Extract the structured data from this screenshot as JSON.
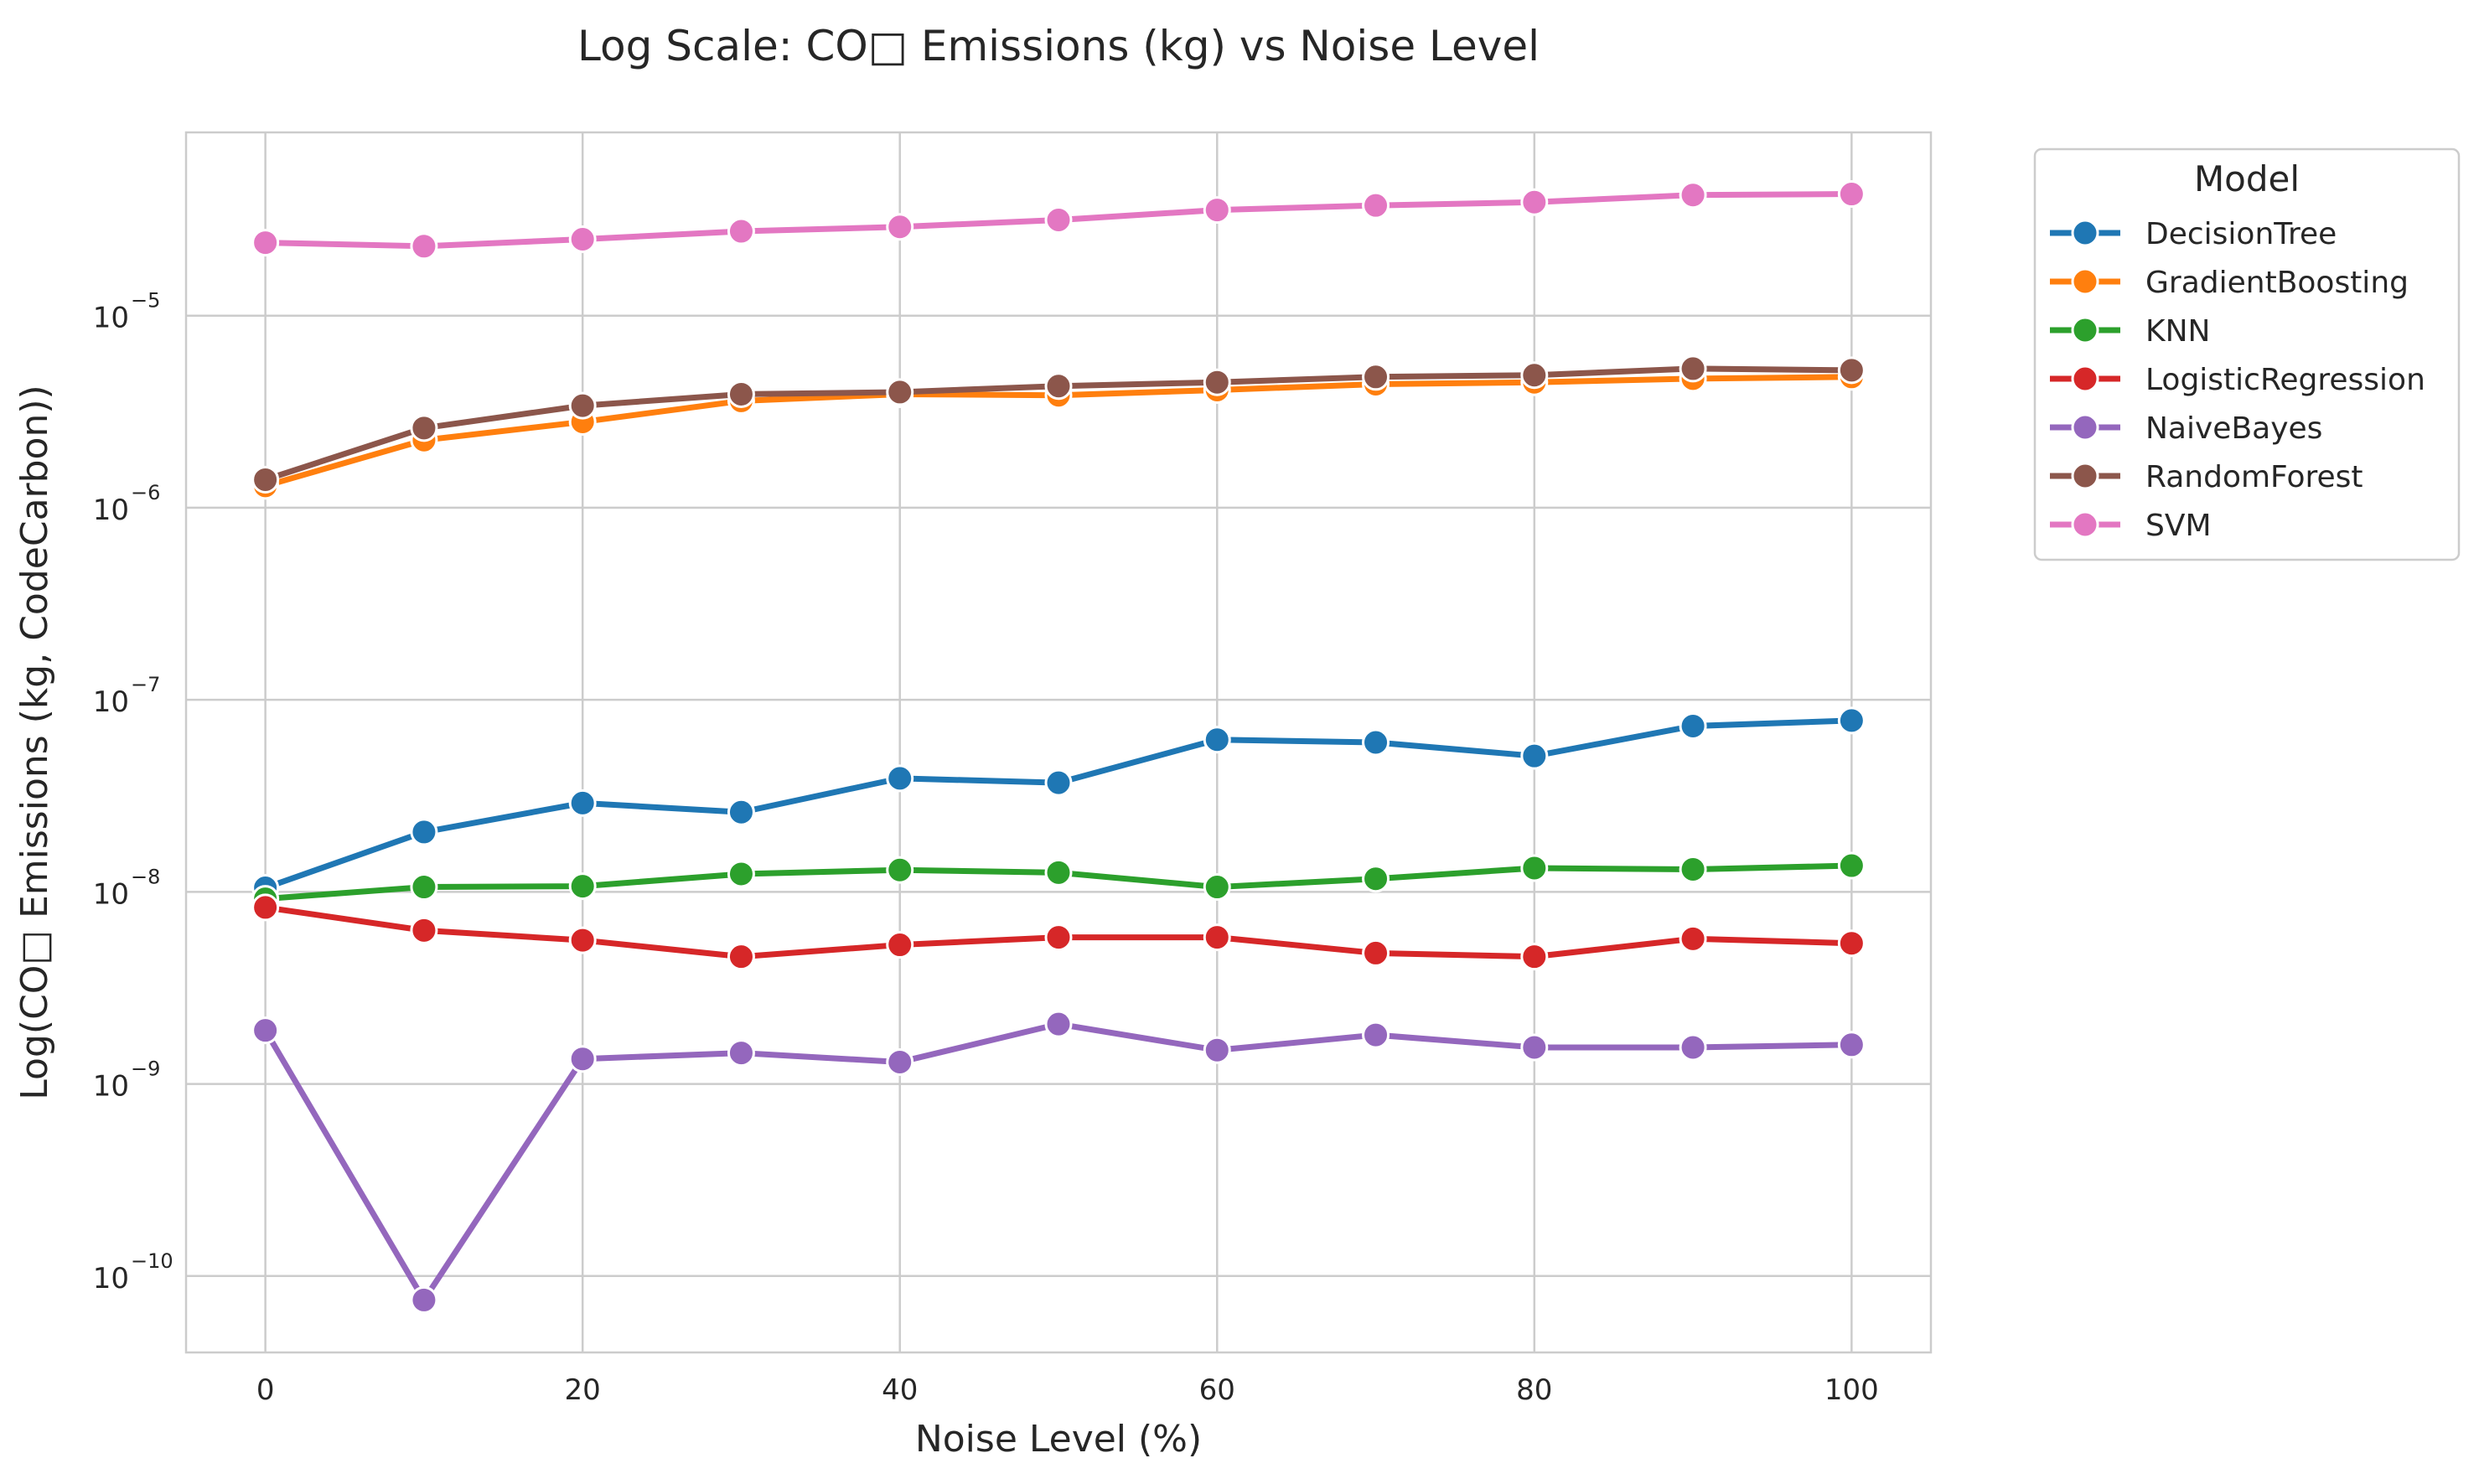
{
  "chart_data": {
    "type": "line",
    "title": "Log Scale: CO□ Emissions (kg) vs Noise Level",
    "xlabel": "Noise Level (%)",
    "ylabel": "Log(CO□ Emissions (kg, CodeCarbon))",
    "x_ticks": [
      "0",
      "20",
      "40",
      "60",
      "80",
      "100"
    ],
    "y_tick_exponents": [
      "−10",
      "−9",
      "−8",
      "−7",
      "−6",
      "−5"
    ],
    "xlim": [
      -5,
      105
    ],
    "ylim": [
      4e-11,
      9e-05
    ],
    "yscale": "log",
    "grid": true,
    "legend_title": "Model",
    "legend_position": "outside upper right",
    "x": [
      0,
      10,
      20,
      30,
      40,
      50,
      60,
      70,
      80,
      90,
      100
    ],
    "series": [
      {
        "name": "DecisionTree",
        "color": "#1f77b4",
        "values": [
          1.05e-08,
          2.05e-08,
          2.9e-08,
          2.6e-08,
          3.9e-08,
          3.7e-08,
          6.2e-08,
          6e-08,
          5.1e-08,
          7.3e-08,
          7.8e-08
        ]
      },
      {
        "name": "GradientBoosting",
        "color": "#ff7f0e",
        "values": [
          1.3e-06,
          2.25e-06,
          2.8e-06,
          3.6e-06,
          3.9e-06,
          3.85e-06,
          4.1e-06,
          4.4e-06,
          4.5e-06,
          4.7e-06,
          4.8e-06
        ]
      },
      {
        "name": "KNN",
        "color": "#2ca02c",
        "values": [
          9.2e-09,
          1.06e-08,
          1.07e-08,
          1.24e-08,
          1.3e-08,
          1.26e-08,
          1.06e-08,
          1.17e-08,
          1.33e-08,
          1.31e-08,
          1.37e-08
        ]
      },
      {
        "name": "LogisticRegression",
        "color": "#d62728",
        "values": [
          8.3e-09,
          6.3e-09,
          5.6e-09,
          4.6e-09,
          5.3e-09,
          5.8e-09,
          5.8e-09,
          4.8e-09,
          4.6e-09,
          5.7e-09,
          5.4e-09
        ]
      },
      {
        "name": "NaiveBayes",
        "color": "#9467bd",
        "values": [
          1.9e-09,
          7.5e-11,
          1.35e-09,
          1.45e-09,
          1.3e-09,
          2.05e-09,
          1.5e-09,
          1.8e-09,
          1.55e-09,
          1.55e-09,
          1.6e-09
        ]
      },
      {
        "name": "RandomForest",
        "color": "#8c564b",
        "values": [
          1.4e-06,
          2.6e-06,
          3.4e-06,
          3.9e-06,
          4e-06,
          4.3e-06,
          4.5e-06,
          4.8e-06,
          4.9e-06,
          5.3e-06,
          5.2e-06
        ]
      },
      {
        "name": "SVM",
        "color": "#e377c2",
        "values": [
          2.4e-05,
          2.3e-05,
          2.5e-05,
          2.75e-05,
          2.9e-05,
          3.15e-05,
          3.55e-05,
          3.75e-05,
          3.9e-05,
          4.25e-05,
          4.3e-05
        ]
      }
    ]
  }
}
